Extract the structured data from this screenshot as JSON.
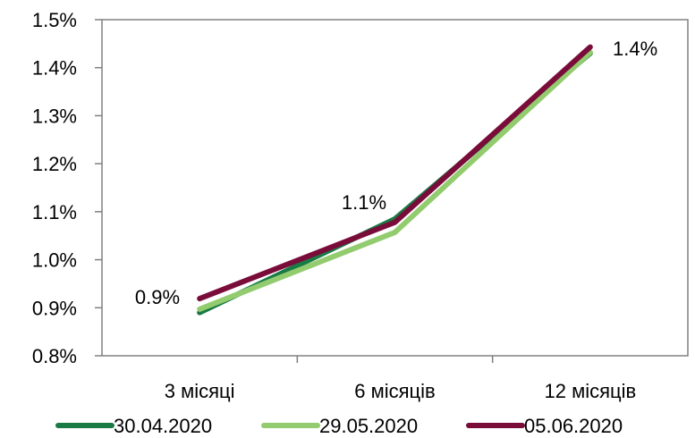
{
  "chart_data": {
    "type": "line",
    "categories": [
      "3 місяці",
      "6 місяців",
      "12 місяців"
    ],
    "series": [
      {
        "name": "30.04.2020",
        "color": "#1a7a45",
        "values": [
          0.89,
          1.085,
          1.43
        ]
      },
      {
        "name": "29.05.2020",
        "color": "#92cc6e",
        "values": [
          0.897,
          1.057,
          1.432
        ]
      },
      {
        "name": "05.06.2020",
        "color": "#7a0c3a",
        "values": [
          0.919,
          1.078,
          1.443
        ]
      }
    ],
    "ylim": [
      0.8,
      1.5
    ],
    "yticks": [
      "0.8%",
      "0.9%",
      "1.0%",
      "1.1%",
      "1.2%",
      "1.3%",
      "1.4%",
      "1.5%"
    ],
    "data_labels": [
      "0.9%",
      "1.1%",
      "1.4%"
    ],
    "legend_position": "bottom",
    "grid": false
  }
}
